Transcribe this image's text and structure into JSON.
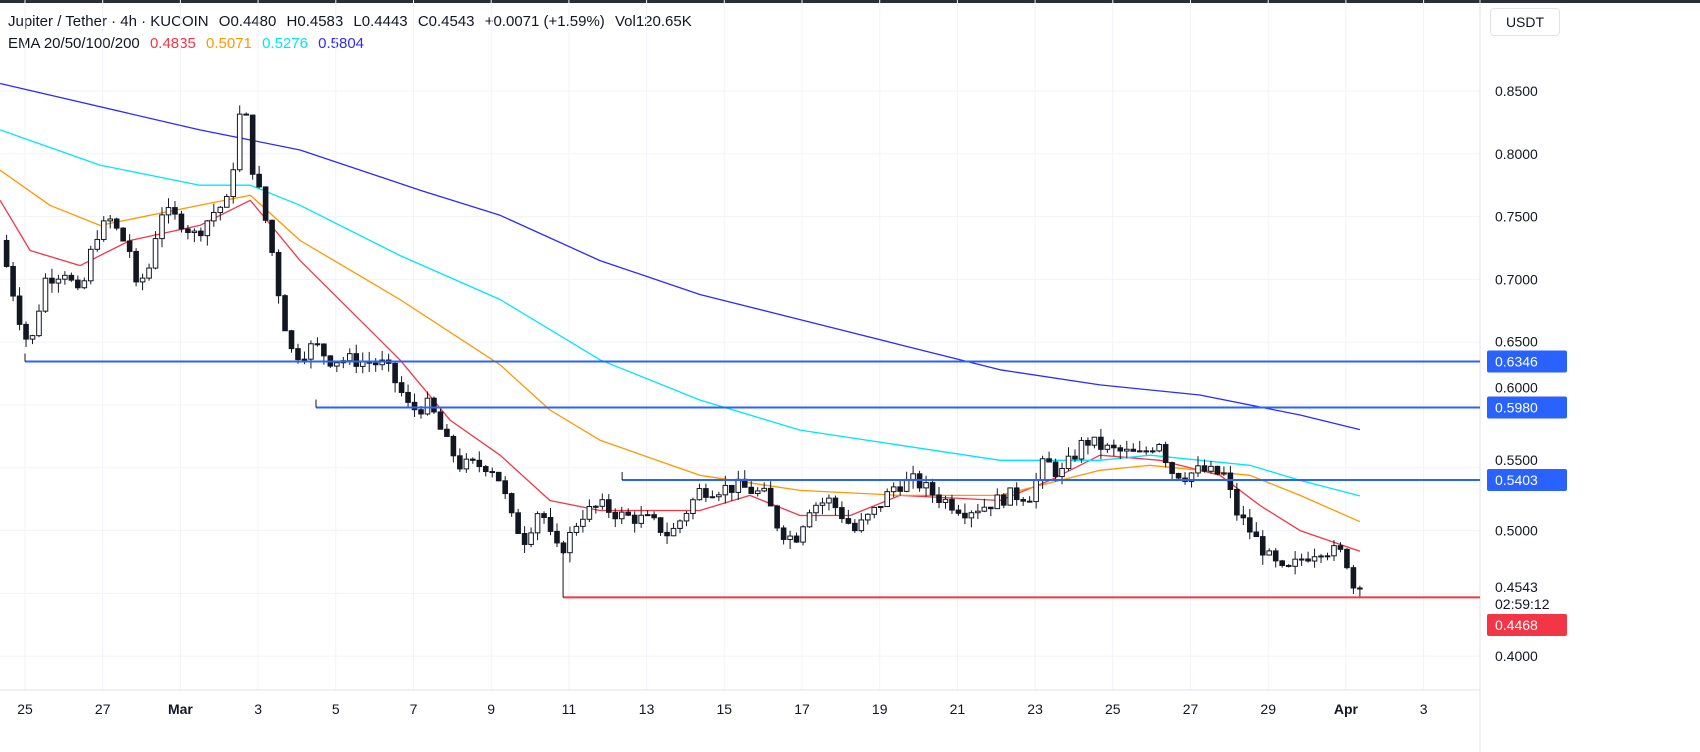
{
  "header": {
    "symbol": "Jupiter / Tether · 4h · KUCOIN",
    "open": "O0.4480",
    "high": "H0.4583",
    "low": "L0.4443",
    "close": "C0.4543",
    "change": "+0.0071 (+1.59%)",
    "volume": "Vol120.65K",
    "ema_label": "EMA 20/50/100/200",
    "ema_values": [
      "0.4835",
      "0.5071",
      "0.5276",
      "0.5804"
    ],
    "currency_button": "USDT"
  },
  "colors": {
    "ema20": "#f23645",
    "ema50": "#ff9800",
    "ema100": "#00e5ff",
    "ema200": "#2b2bff",
    "up": "#ffffff",
    "down": "#131722",
    "level": "#2962ff",
    "support": "#f23645"
  },
  "chart_data": {
    "type": "candlestick",
    "x_unit": "days since Feb 25",
    "ylim": [
      0.38,
      0.88
    ],
    "y_ticks": [
      "0.8500",
      "0.8000",
      "0.7500",
      "0.7000",
      "0.6500",
      "0.6000",
      "0.5500",
      "0.5000",
      "0.4500",
      "0.4000"
    ],
    "x_ticks": [
      {
        "t": 0,
        "label": "25"
      },
      {
        "t": 2,
        "label": "27"
      },
      {
        "t": 4,
        "label": "Mar",
        "bold": true
      },
      {
        "t": 6,
        "label": "3"
      },
      {
        "t": 8,
        "label": "5"
      },
      {
        "t": 10,
        "label": "7"
      },
      {
        "t": 12,
        "label": "9"
      },
      {
        "t": 14,
        "label": "11"
      },
      {
        "t": 16,
        "label": "13"
      },
      {
        "t": 18,
        "label": "15"
      },
      {
        "t": 20,
        "label": "17"
      },
      {
        "t": 22,
        "label": "19"
      },
      {
        "t": 24,
        "label": "21"
      },
      {
        "t": 26,
        "label": "23"
      },
      {
        "t": 28,
        "label": "25"
      },
      {
        "t": 30,
        "label": "27"
      },
      {
        "t": 32,
        "label": "29"
      },
      {
        "t": 34,
        "label": "Apr",
        "bold": true
      },
      {
        "t": 36,
        "label": "3"
      }
    ],
    "price_path": [
      [
        -0.64,
        0.731
      ],
      [
        -0.13,
        0.668
      ],
      [
        0.13,
        0.644
      ],
      [
        0.51,
        0.7
      ],
      [
        1.03,
        0.707
      ],
      [
        1.42,
        0.684
      ],
      [
        1.8,
        0.735
      ],
      [
        2.19,
        0.747
      ],
      [
        2.7,
        0.723
      ],
      [
        2.83,
        0.691
      ],
      [
        3.22,
        0.711
      ],
      [
        3.47,
        0.755
      ],
      [
        3.99,
        0.747
      ],
      [
        4.38,
        0.735
      ],
      [
        4.89,
        0.755
      ],
      [
        5.28,
        0.763
      ],
      [
        5.46,
        0.827
      ],
      [
        5.66,
        0.835
      ],
      [
        5.84,
        0.791
      ],
      [
        6.05,
        0.767
      ],
      [
        6.31,
        0.731
      ],
      [
        6.56,
        0.684
      ],
      [
        6.82,
        0.644
      ],
      [
        7.08,
        0.64
      ],
      [
        7.46,
        0.648
      ],
      [
        7.85,
        0.636
      ],
      [
        8.37,
        0.636
      ],
      [
        9.27,
        0.632
      ],
      [
        9.65,
        0.612
      ],
      [
        9.91,
        0.596
      ],
      [
        10.42,
        0.6
      ],
      [
        10.81,
        0.572
      ],
      [
        11.2,
        0.552
      ],
      [
        11.97,
        0.552
      ],
      [
        12.23,
        0.54
      ],
      [
        12.54,
        0.508
      ],
      [
        12.87,
        0.493
      ],
      [
        13.26,
        0.52
      ],
      [
        13.64,
        0.484
      ],
      [
        13.9,
        0.488
      ],
      [
        14.29,
        0.512
      ],
      [
        14.8,
        0.52
      ],
      [
        15.32,
        0.512
      ],
      [
        16.09,
        0.508
      ],
      [
        16.6,
        0.496
      ],
      [
        17.37,
        0.532
      ],
      [
        18.4,
        0.535
      ],
      [
        19.05,
        0.528
      ],
      [
        19.43,
        0.5
      ],
      [
        19.82,
        0.493
      ],
      [
        20.21,
        0.52
      ],
      [
        20.72,
        0.524
      ],
      [
        21.36,
        0.5
      ],
      [
        21.88,
        0.516
      ],
      [
        22.39,
        0.536
      ],
      [
        22.91,
        0.54
      ],
      [
        23.42,
        0.528
      ],
      [
        24.2,
        0.516
      ],
      [
        24.71,
        0.52
      ],
      [
        25.35,
        0.528
      ],
      [
        25.87,
        0.528
      ],
      [
        26.25,
        0.556
      ],
      [
        26.64,
        0.544
      ],
      [
        27.28,
        0.572
      ],
      [
        27.93,
        0.564
      ],
      [
        28.7,
        0.56
      ],
      [
        29.21,
        0.572
      ],
      [
        29.47,
        0.548
      ],
      [
        29.86,
        0.544
      ],
      [
        30.24,
        0.548
      ],
      [
        30.89,
        0.544
      ],
      [
        31.15,
        0.516
      ],
      [
        31.53,
        0.5
      ],
      [
        32.05,
        0.477
      ],
      [
        32.43,
        0.465
      ],
      [
        32.82,
        0.477
      ],
      [
        33.33,
        0.486
      ],
      [
        33.98,
        0.481
      ],
      [
        34.23,
        0.449
      ],
      [
        34.36,
        0.4543
      ]
    ],
    "ema": [
      {
        "name": "EMA20",
        "color_key": "ema20",
        "points": [
          [
            -0.64,
            0.763
          ],
          [
            0.13,
            0.723
          ],
          [
            1.42,
            0.711
          ],
          [
            2.7,
            0.731
          ],
          [
            4.5,
            0.743
          ],
          [
            5.8,
            0.763
          ],
          [
            7.08,
            0.715
          ],
          [
            9.65,
            0.636
          ],
          [
            10.94,
            0.588
          ],
          [
            12.23,
            0.56
          ],
          [
            13.51,
            0.524
          ],
          [
            14.8,
            0.516
          ],
          [
            17.37,
            0.516
          ],
          [
            18.66,
            0.528
          ],
          [
            19.95,
            0.512
          ],
          [
            21.24,
            0.512
          ],
          [
            22.52,
            0.528
          ],
          [
            23.81,
            0.526
          ],
          [
            25.1,
            0.524
          ],
          [
            26.38,
            0.54
          ],
          [
            27.67,
            0.56
          ],
          [
            29.21,
            0.556
          ],
          [
            30.76,
            0.544
          ],
          [
            31.79,
            0.52
          ],
          [
            32.82,
            0.5
          ],
          [
            34.36,
            0.4835
          ]
        ]
      },
      {
        "name": "EMA50",
        "color_key": "ema50",
        "points": [
          [
            -0.64,
            0.787
          ],
          [
            0.64,
            0.759
          ],
          [
            1.93,
            0.743
          ],
          [
            4.5,
            0.759
          ],
          [
            5.8,
            0.767
          ],
          [
            7.08,
            0.731
          ],
          [
            9.65,
            0.684
          ],
          [
            12.23,
            0.632
          ],
          [
            13.51,
            0.596
          ],
          [
            14.8,
            0.572
          ],
          [
            17.37,
            0.544
          ],
          [
            19.95,
            0.532
          ],
          [
            22.52,
            0.528
          ],
          [
            25.1,
            0.528
          ],
          [
            27.67,
            0.548
          ],
          [
            28.96,
            0.552
          ],
          [
            31.53,
            0.544
          ],
          [
            32.82,
            0.528
          ],
          [
            34.36,
            0.5071
          ]
        ]
      },
      {
        "name": "EMA100",
        "color_key": "ema100",
        "points": [
          [
            -0.64,
            0.819
          ],
          [
            1.93,
            0.791
          ],
          [
            4.5,
            0.775
          ],
          [
            5.8,
            0.775
          ],
          [
            7.08,
            0.759
          ],
          [
            9.65,
            0.719
          ],
          [
            12.23,
            0.684
          ],
          [
            14.8,
            0.636
          ],
          [
            17.37,
            0.604
          ],
          [
            19.95,
            0.58
          ],
          [
            22.52,
            0.568
          ],
          [
            25.1,
            0.556
          ],
          [
            27.67,
            0.556
          ],
          [
            28.96,
            0.56
          ],
          [
            31.53,
            0.552
          ],
          [
            32.82,
            0.54
          ],
          [
            34.36,
            0.5276
          ]
        ]
      },
      {
        "name": "EMA200",
        "color_key": "ema200",
        "points": [
          [
            -0.64,
            0.856
          ],
          [
            4.5,
            0.819
          ],
          [
            7.08,
            0.803
          ],
          [
            10.17,
            0.771
          ],
          [
            12.23,
            0.751
          ],
          [
            14.8,
            0.715
          ],
          [
            17.37,
            0.688
          ],
          [
            19.95,
            0.668
          ],
          [
            22.52,
            0.648
          ],
          [
            25.1,
            0.628
          ],
          [
            27.67,
            0.616
          ],
          [
            30.24,
            0.608
          ],
          [
            32.82,
            0.592
          ],
          [
            34.36,
            0.5804
          ]
        ]
      }
    ],
    "levels": [
      {
        "price": 0.6346,
        "label": "0.6346",
        "start_t": 0,
        "color_key": "level"
      },
      {
        "price": 0.598,
        "label": "0.5980",
        "start_t": 7.49,
        "color_key": "level"
      },
      {
        "price": 0.5403,
        "label": "0.5403",
        "start_t": 15.37,
        "color_key": "level"
      },
      {
        "price": 0.4468,
        "label": "0.4468",
        "start_t": 13.85,
        "color_key": "support"
      }
    ],
    "last_price": {
      "label": "0.4543",
      "countdown": "02:59:12"
    }
  }
}
